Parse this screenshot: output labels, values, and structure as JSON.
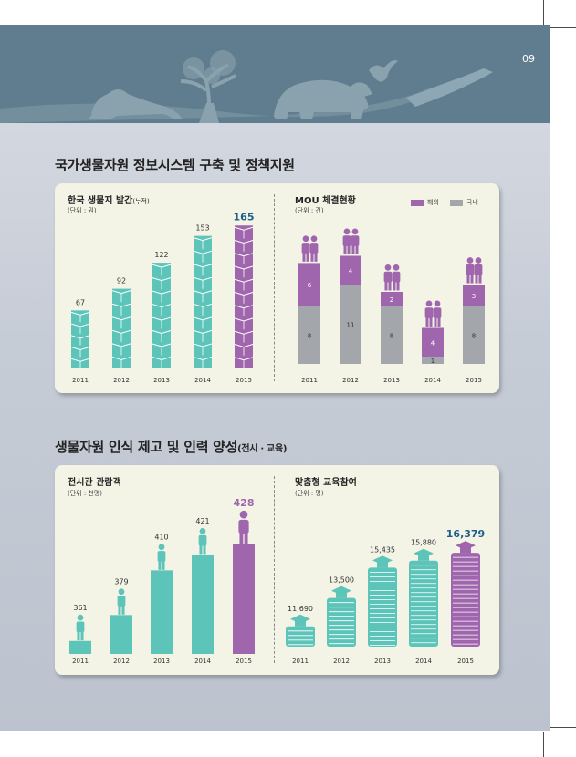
{
  "page_number": "09",
  "colors": {
    "teal": "#5cc4b8",
    "purple": "#9f66ad",
    "gray": "#a3a7ab",
    "banner": "#5f7d8e"
  },
  "section1": {
    "title": "국가생물자원 정보시스템 구축 및 정책지원"
  },
  "section2": {
    "title": "생물자원 인식 제고 및 인력 양성",
    "subtitle": "(전시 · 교육)"
  },
  "chart_data": [
    {
      "type": "bar",
      "title": "한국 생물지 발간",
      "title_suffix": "(누적)",
      "unit": "(단위 : 권)",
      "categories": [
        "2011",
        "2012",
        "2013",
        "2014",
        "2015"
      ],
      "values": [
        67,
        92,
        122,
        153,
        165
      ],
      "value_labels": [
        "67",
        "92",
        "122",
        "153",
        "165"
      ],
      "highlight_index": 4
    },
    {
      "type": "bar",
      "stacked": true,
      "title": "MOU 체결현황",
      "unit": "(단위 : 건)",
      "categories": [
        "2011",
        "2012",
        "2013",
        "2014",
        "2015"
      ],
      "series": [
        {
          "name": "국내",
          "values": [
            8,
            11,
            8,
            1,
            8
          ],
          "labels": [
            "8",
            "11",
            "8",
            "1",
            "8"
          ]
        },
        {
          "name": "해외",
          "values": [
            6,
            4,
            2,
            4,
            3
          ],
          "labels": [
            "6",
            "4",
            "2",
            "4",
            "3"
          ]
        }
      ],
      "legend_position": "top-right"
    },
    {
      "type": "bar",
      "title": "전시관 관람객",
      "unit": "(단위 : 천명)",
      "categories": [
        "2011",
        "2012",
        "2013",
        "2014",
        "2015"
      ],
      "values": [
        361,
        379,
        410,
        421,
        428
      ],
      "value_labels": [
        "361",
        "379",
        "410",
        "421",
        "428"
      ],
      "highlight_index": 4
    },
    {
      "type": "bar",
      "title": "맞춤형 교육참여",
      "unit": "(단위 : 명)",
      "categories": [
        "2011",
        "2012",
        "2013",
        "2014",
        "2015"
      ],
      "values": [
        11690,
        13500,
        15435,
        15880,
        16379
      ],
      "value_labels": [
        "11,690",
        "13,500",
        "15,435",
        "15,880",
        "16,379"
      ],
      "highlight_index": 4
    }
  ]
}
